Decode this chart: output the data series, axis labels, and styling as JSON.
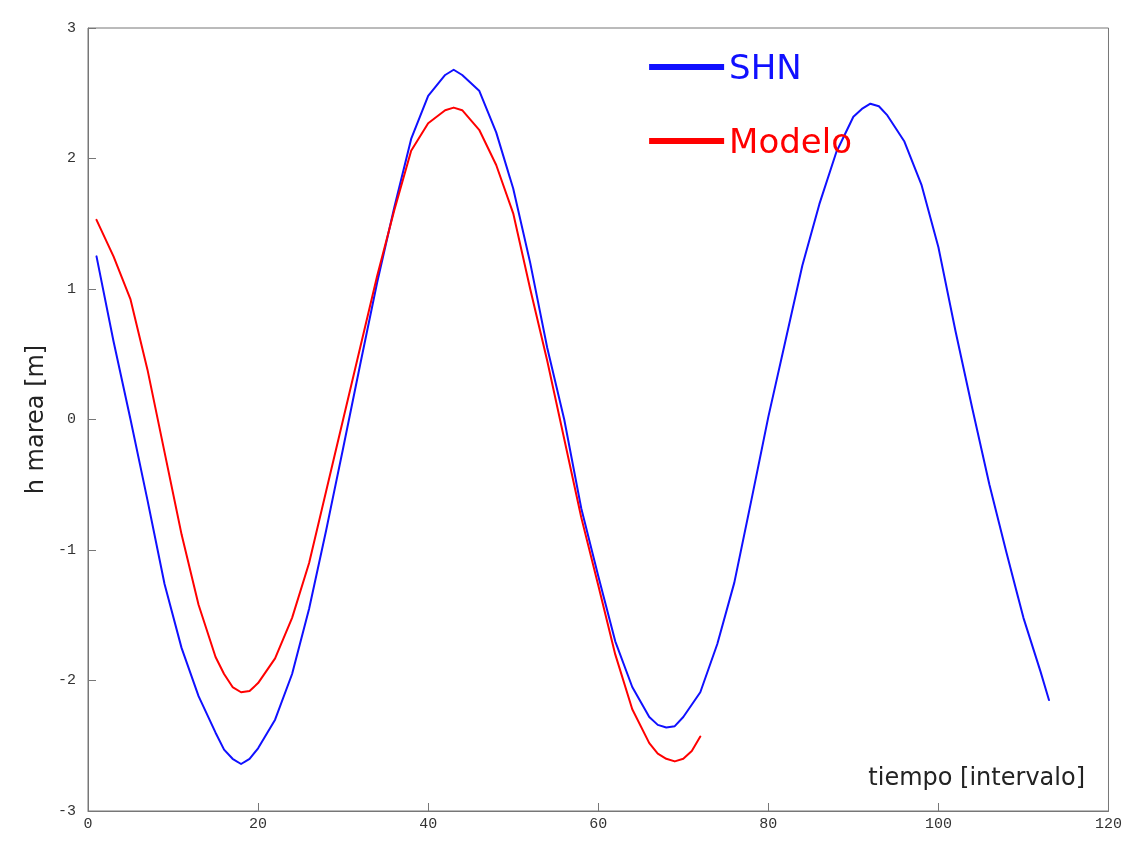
{
  "chart_data": {
    "type": "line",
    "xlabel": "tiempo [intervalo]",
    "ylabel": "h marea [m]",
    "xlim": [
      0,
      120
    ],
    "xticks": [
      0,
      20,
      40,
      60,
      80,
      100,
      120
    ],
    "ylim": [
      -3,
      3
    ],
    "yticks": [
      -3,
      -2,
      -1,
      0,
      1,
      2,
      3
    ],
    "grid": false,
    "legend": "top right",
    "marker": "none",
    "line_style": "solid",
    "series": [
      {
        "name": "SHN",
        "color": "#1010ff",
        "x": [
          1,
          3,
          5,
          7,
          9,
          11,
          13,
          15,
          16,
          17,
          18,
          19,
          20,
          22,
          24,
          26,
          28,
          30,
          32,
          34,
          36,
          38,
          40,
          42,
          43,
          44,
          46,
          48,
          50,
          52,
          54,
          56,
          58,
          60,
          62,
          64,
          66,
          67,
          68,
          69,
          70,
          72,
          74,
          76,
          78,
          80,
          82,
          84,
          86,
          88,
          90,
          91,
          92,
          93,
          94,
          96,
          98,
          100,
          102,
          104,
          106,
          108,
          110,
          112,
          113
        ],
        "values": [
          1.25,
          0.6,
          0.0,
          -0.62,
          -1.26,
          -1.75,
          -2.12,
          -2.4,
          -2.53,
          -2.6,
          -2.64,
          -2.6,
          -2.52,
          -2.3,
          -1.95,
          -1.45,
          -0.85,
          -0.22,
          0.42,
          1.05,
          1.62,
          2.15,
          2.48,
          2.64,
          2.68,
          2.64,
          2.52,
          2.2,
          1.77,
          1.2,
          0.55,
          0.0,
          -0.68,
          -1.2,
          -1.7,
          -2.05,
          -2.28,
          -2.34,
          -2.36,
          -2.35,
          -2.28,
          -2.09,
          -1.72,
          -1.25,
          -0.62,
          0.02,
          0.6,
          1.18,
          1.65,
          2.05,
          2.32,
          2.38,
          2.42,
          2.4,
          2.33,
          2.13,
          1.8,
          1.32,
          0.68,
          0.08,
          -0.5,
          -1.02,
          -1.52,
          -1.93,
          -2.15
        ]
      },
      {
        "name": "Modelo",
        "color": "#ff0000",
        "x": [
          1,
          3,
          5,
          7,
          9,
          11,
          13,
          15,
          16,
          17,
          18,
          19,
          20,
          22,
          24,
          26,
          28,
          30,
          32,
          34,
          36,
          38,
          40,
          42,
          43,
          44,
          46,
          48,
          50,
          52,
          54,
          56,
          58,
          60,
          62,
          64,
          66,
          67,
          68,
          69,
          70,
          71,
          72
        ],
        "values": [
          1.53,
          1.25,
          0.92,
          0.38,
          -0.25,
          -0.88,
          -1.42,
          -1.82,
          -1.95,
          -2.05,
          -2.09,
          -2.08,
          -2.02,
          -1.83,
          -1.52,
          -1.1,
          -0.55,
          0.0,
          0.55,
          1.1,
          1.6,
          2.06,
          2.27,
          2.37,
          2.39,
          2.37,
          2.22,
          1.95,
          1.58,
          1.0,
          0.45,
          -0.15,
          -0.75,
          -1.27,
          -1.8,
          -2.22,
          -2.48,
          -2.56,
          -2.6,
          -2.62,
          -2.6,
          -2.54,
          -2.43
        ]
      }
    ]
  }
}
